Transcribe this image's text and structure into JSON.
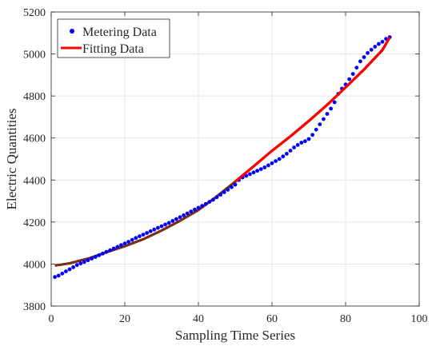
{
  "chart_data": {
    "type": "scatter",
    "xlabel": "Sampling Time Series",
    "ylabel": "Electric Quantities",
    "xlim": [
      0,
      100
    ],
    "ylim": [
      3800,
      5200
    ],
    "x_ticks": [
      0,
      20,
      40,
      60,
      80,
      100
    ],
    "y_ticks": [
      3800,
      4000,
      4200,
      4400,
      4600,
      4800,
      5000,
      5200
    ],
    "grid": true,
    "legend_position": "top-left",
    "series": [
      {
        "name": "Metering Data",
        "type": "scatter",
        "color": "#0000ff",
        "x": [
          1,
          2,
          3,
          4,
          5,
          6,
          7,
          8,
          9,
          10,
          11,
          12,
          13,
          14,
          15,
          16,
          17,
          18,
          19,
          20,
          21,
          22,
          23,
          24,
          25,
          26,
          27,
          28,
          29,
          30,
          31,
          32,
          33,
          34,
          35,
          36,
          37,
          38,
          39,
          40,
          41,
          42,
          43,
          44,
          45,
          46,
          47,
          48,
          49,
          50,
          51,
          52,
          53,
          54,
          55,
          56,
          57,
          58,
          59,
          60,
          61,
          62,
          63,
          64,
          65,
          66,
          67,
          68,
          69,
          70,
          71,
          72,
          73,
          74,
          75,
          76,
          77,
          78,
          79,
          80,
          81,
          82,
          83,
          84,
          85,
          86,
          87,
          88,
          89,
          90,
          91,
          92
        ],
        "y": [
          3938,
          3945,
          3955,
          3965,
          3975,
          3985,
          3995,
          4003,
          4010,
          4018,
          4026,
          4034,
          4042,
          4050,
          4058,
          4066,
          4074,
          4082,
          4090,
          4098,
          4106,
          4115,
          4124,
          4132,
          4140,
          4148,
          4156,
          4164,
          4172,
          4180,
          4188,
          4196,
          4205,
          4214,
          4223,
          4232,
          4241,
          4250,
          4259,
          4268,
          4277,
          4286,
          4296,
          4306,
          4318,
          4330,
          4342,
          4354,
          4366,
          4378,
          4400,
          4412,
          4420,
          4428,
          4436,
          4444,
          4452,
          4460,
          4470,
          4480,
          4490,
          4500,
          4512,
          4525,
          4540,
          4555,
          4567,
          4578,
          4585,
          4595,
          4615,
          4640,
          4665,
          4690,
          4715,
          4740,
          4770,
          4810,
          4835,
          4855,
          4880,
          4905,
          4935,
          4965,
          4985,
          5005,
          5020,
          5035,
          5048,
          5058,
          5072,
          5080
        ]
      },
      {
        "name": "Fitting Data",
        "type": "line",
        "color": "#ff0000",
        "x": [
          1,
          5,
          10,
          15,
          20,
          25,
          30,
          35,
          40,
          45,
          50,
          55,
          60,
          65,
          70,
          75,
          80,
          85,
          90,
          92
        ],
        "y": [
          3993,
          4003,
          4026,
          4056,
          4085,
          4118,
          4160,
          4206,
          4257,
          4322,
          4392,
          4465,
          4539,
          4608,
          4681,
          4758,
          4841,
          4926,
          5019,
          5079
        ]
      }
    ]
  }
}
